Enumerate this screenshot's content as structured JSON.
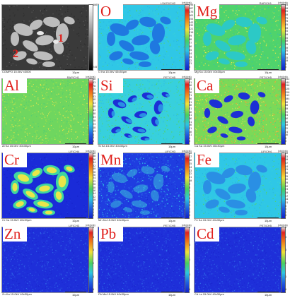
{
  "panels": [
    {
      "id": "compo",
      "element": "",
      "header": "",
      "caption": "COMPO 15.0kV x3000",
      "scale": "10µm",
      "unit": "",
      "ticks": [
        "40655",
        "",
        "",
        "",
        "",
        "",
        "",
        "",
        "",
        "",
        "",
        "",
        "",
        "",
        "",
        "",
        "",
        "",
        "",
        "24575"
      ],
      "style": "sem",
      "labels": [
        "1",
        "2"
      ]
    },
    {
      "id": "o",
      "element": "O",
      "header": "LSA70/CH2",
      "caption": "O Ka 15.0kV 40x30µm",
      "scale": "10µm",
      "unit": "(cts)(cts)",
      "ticks": [
        "198",
        "187",
        "176",
        "165",
        "154",
        "143",
        "132",
        "121",
        "110",
        "99",
        "88",
        "77",
        "66",
        "55",
        "44",
        "33",
        "22",
        "11",
        "0"
      ],
      "style": "cyan-blob"
    },
    {
      "id": "mg",
      "element": "Mg",
      "header": "RAP/CH1",
      "caption": "Mg Ka 15.0kV 40x30µm",
      "scale": "10µm",
      "unit": "(cts)(cts)",
      "ticks": [
        "95",
        "90",
        "85",
        "80",
        "75",
        "70",
        "65",
        "60",
        "55",
        "50",
        "45",
        "40",
        "35",
        "30",
        "25",
        "20",
        "15",
        "10",
        "5",
        "0"
      ],
      "style": "green-blob"
    },
    {
      "id": "al",
      "element": "Al",
      "header": "RAP/CH1",
      "caption": "Al Ka 15.0kV 40x30µm",
      "scale": "10µm",
      "unit": "(cts)(cts)",
      "ticks": [
        "88",
        "83",
        "78",
        "73",
        "68",
        "63",
        "58",
        "53",
        "48",
        "43",
        "38",
        "33",
        "28",
        "23",
        "18",
        "13",
        "8",
        "3",
        "0"
      ],
      "style": "green-uniform"
    },
    {
      "id": "si",
      "element": "Si",
      "header": "PET/CH5",
      "caption": "Si Ka 15.0kV 40x30µm",
      "scale": "10µm",
      "unit": "(cts)(cts)",
      "ticks": [
        "96",
        "91",
        "86",
        "81",
        "76",
        "71",
        "66",
        "61",
        "56",
        "51",
        "46",
        "41",
        "36",
        "31",
        "26",
        "21",
        "16",
        "11",
        "6",
        "0"
      ],
      "style": "cyan-holes"
    },
    {
      "id": "ca",
      "element": "Ca",
      "header": "PET/CH5",
      "caption": "Ca Ka 15.0kV 40x30µm",
      "scale": "10µm",
      "unit": "(cts)(cts)",
      "ticks": [
        "152",
        "144",
        "136",
        "128",
        "120",
        "112",
        "104",
        "96",
        "88",
        "80",
        "72",
        "64",
        "56",
        "48",
        "40",
        "32",
        "24",
        "16",
        "8",
        "0"
      ],
      "style": "green-holes"
    },
    {
      "id": "cr",
      "element": "Cr",
      "header": "LIF/CH4",
      "caption": "Cr Ka 15.0kV 40x30µm",
      "scale": "10µm",
      "unit": "(cts)(cts)",
      "ticks": [
        "40",
        "38",
        "36",
        "34",
        "32",
        "30",
        "28",
        "26",
        "24",
        "22",
        "20",
        "18",
        "16",
        "14",
        "12",
        "10",
        "8",
        "6",
        "4",
        "2",
        "0"
      ],
      "style": "blue-blob-bright"
    },
    {
      "id": "mn",
      "element": "Mn",
      "header": "LIF/CH3",
      "caption": "Mn Ka 15.0kV 40x30µm",
      "scale": "10µm",
      "unit": "(cts)(cts)",
      "ticks": [
        "18",
        "17",
        "16",
        "15",
        "14",
        "13",
        "12",
        "11",
        "10",
        "9",
        "8",
        "7",
        "6",
        "5",
        "4",
        "3",
        "2",
        "1",
        "0"
      ],
      "style": "blue-noise-blob"
    },
    {
      "id": "fe",
      "element": "Fe",
      "header": "LIF/CH4",
      "caption": "Fe Ka 15.0kV 40x30µm",
      "scale": "10µm",
      "unit": "(cts)(cts)",
      "ticks": [
        "56",
        "53",
        "50",
        "47",
        "44",
        "41",
        "38",
        "35",
        "32",
        "29",
        "26",
        "23",
        "20",
        "17",
        "14",
        "11",
        "8",
        "5",
        "2",
        "0"
      ],
      "style": "cyan-blob-soft"
    },
    {
      "id": "zn",
      "element": "Zn",
      "header": "LIF/CH3",
      "caption": "Zn Ka 15.0kV 40x30µm",
      "scale": "10µm",
      "unit": "(cts)(cts)",
      "ticks": [
        "5",
        "",
        "4",
        "",
        "",
        "3",
        "",
        "",
        "2",
        "",
        "",
        "1",
        "",
        "",
        "0"
      ],
      "style": "blue-noise"
    },
    {
      "id": "pb",
      "element": "Pb",
      "header": "PET/CH5",
      "caption": "Pb Ma 15.0kV 40x30µm",
      "scale": "10µm",
      "unit": "(cts)(cts)",
      "ticks": [
        "4",
        "",
        "",
        "",
        "",
        "3",
        "",
        "",
        "",
        "2",
        "",
        "",
        "",
        "1",
        "",
        "",
        "",
        "0"
      ],
      "style": "blue-noise"
    },
    {
      "id": "cd",
      "element": "Cd",
      "header": "PET/CH5",
      "caption": "Cd La 15.0kV 40x30µm",
      "scale": "10µm",
      "unit": "(cts)(cts)",
      "ticks": [
        "5",
        "",
        "4",
        "",
        "",
        "3",
        "",
        "",
        "2",
        "",
        "",
        "1",
        "",
        "",
        "0"
      ],
      "style": "blue-noise"
    }
  ],
  "colors": {
    "label_red": "#e0201c",
    "deep_blue": "#1a34d8",
    "cyan": "#2fc7e6",
    "green": "#4fd36c",
    "yellow": "#e9e64a"
  }
}
